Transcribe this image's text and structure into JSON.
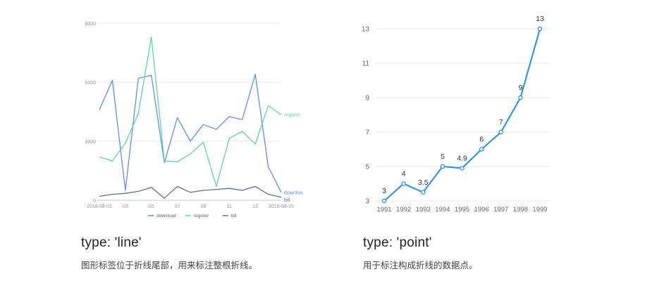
{
  "colors": {
    "download": "#5B8FF9",
    "register": "#5AD8A6",
    "bill": "#5D7092",
    "point_line": "#1890FF",
    "grid": "#e8e8e8",
    "axis_text_left": "#999999",
    "axis_text_right": "#666666"
  },
  "chart_data": [
    {
      "type": "line",
      "x": [
        "2018-08-01",
        "2018-08-02",
        "2018-08-03",
        "2018-08-04",
        "2018-08-05",
        "2018-08-06",
        "2018-08-07",
        "2018-08-08",
        "2018-08-09",
        "2018-08-10",
        "2018-08-11",
        "2018-08-12",
        "2018-08-13",
        "2018-08-14",
        "2018-08-15"
      ],
      "x_tick_labels": [
        "2018-08-01",
        "03",
        "05",
        "07",
        "09",
        "11",
        "13",
        "2018-08-15"
      ],
      "y_tick_labels": [
        "0",
        "3000",
        "6000",
        "9000"
      ],
      "ylim": [
        0,
        9000
      ],
      "grid": true,
      "legend_position": "bottom",
      "series": [
        {
          "name": "download",
          "values": [
            4600,
            6100,
            500,
            6200,
            6350,
            1900,
            4200,
            3000,
            3850,
            3600,
            4250,
            4100,
            6400,
            1700,
            400
          ],
          "end_label": "downloa"
        },
        {
          "name": "register",
          "values": [
            2200,
            2000,
            2900,
            4400,
            8300,
            2000,
            1950,
            2350,
            2950,
            700,
            3150,
            3500,
            2850,
            4800,
            4350
          ],
          "end_label": "register"
        },
        {
          "name": "bill",
          "values": [
            200,
            300,
            350,
            450,
            650,
            100,
            700,
            400,
            500,
            550,
            600,
            500,
            700,
            300,
            150
          ],
          "end_label": "bill"
        }
      ]
    },
    {
      "type": "line",
      "x": [
        "1991",
        "1992",
        "1993",
        "1994",
        "1995",
        "1996",
        "1997",
        "1998",
        "1999"
      ],
      "values": [
        3,
        4,
        3.5,
        5,
        4.9,
        6,
        7,
        9,
        13
      ],
      "data_labels": [
        "3",
        "4",
        "3.5",
        "5",
        "4.9",
        "6",
        "7",
        "9",
        "13"
      ],
      "y_tick_labels": [
        "3",
        "5",
        "7",
        "9",
        "11",
        "13"
      ],
      "ylim": [
        3,
        13
      ],
      "grid": true,
      "point_markers": true
    }
  ],
  "captions": {
    "left_title": "type: 'line'",
    "left_desc": "图形标签位于折线尾部，用来标注整根折线。",
    "right_title": "type: 'point'",
    "right_desc": "用于标注构成折线的数据点。"
  }
}
